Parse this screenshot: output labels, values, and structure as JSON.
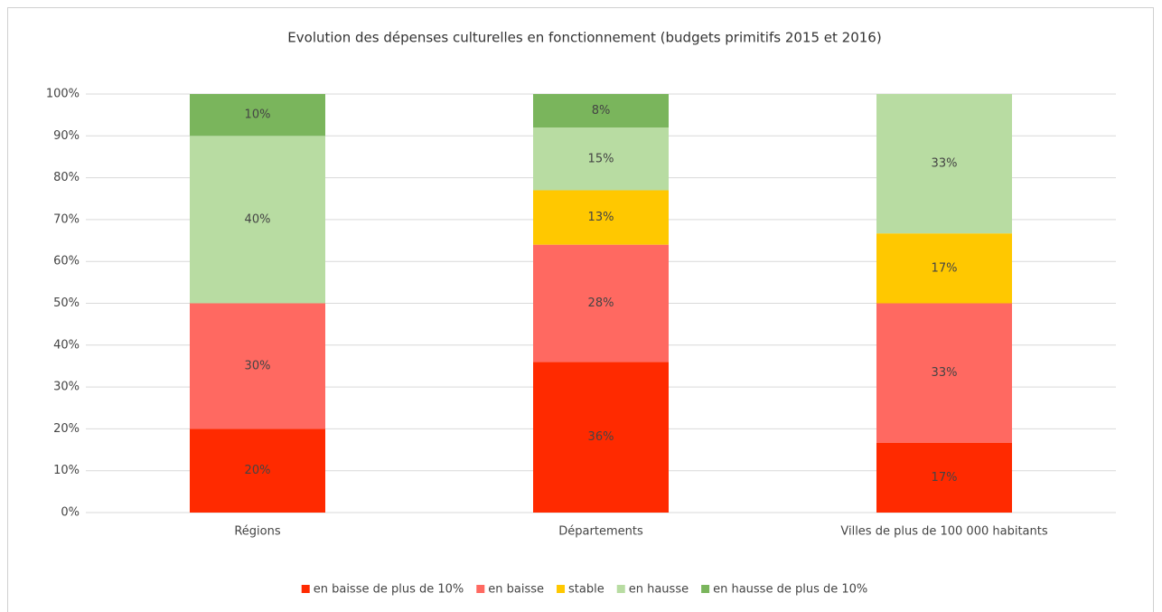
{
  "chart_data": {
    "type": "stacked_bar",
    "title": "Evolution des dépenses culturelles en fonctionnement (budgets primitifs 2015 et 2016)",
    "categories": [
      "Régions",
      "Départements",
      "Villes de plus de 100 000 habitants"
    ],
    "series": [
      {
        "name": "en baisse de plus de 10%",
        "color": "#ff2a00",
        "values": [
          20,
          36,
          16.7
        ],
        "value_labels": [
          "20%",
          "36%",
          "17%"
        ]
      },
      {
        "name": "en baisse",
        "color": "#ff6961",
        "values": [
          30,
          28,
          33.3
        ],
        "value_labels": [
          "30%",
          "28%",
          "33%"
        ]
      },
      {
        "name": "stable",
        "color": "#ffc800",
        "values": [
          0,
          13,
          16.7
        ],
        "value_labels": [
          null,
          "13%",
          "17%"
        ]
      },
      {
        "name": "en hausse",
        "color": "#b8dca2",
        "values": [
          40,
          15,
          33.3
        ],
        "value_labels": [
          "40%",
          "15%",
          "33%"
        ]
      },
      {
        "name": "en hausse de plus de 10%",
        "color": "#7ab55c",
        "values": [
          10,
          8,
          0
        ],
        "value_labels": [
          "10%",
          "8%",
          null
        ]
      }
    ],
    "ylim": [
      0,
      100
    ],
    "yticks": [
      {
        "value": 0,
        "label": "0%"
      },
      {
        "value": 10,
        "label": "10%"
      },
      {
        "value": 20,
        "label": "20%"
      },
      {
        "value": 30,
        "label": "30%"
      },
      {
        "value": 40,
        "label": "40%"
      },
      {
        "value": 50,
        "label": "50%"
      },
      {
        "value": 60,
        "label": "60%"
      },
      {
        "value": 70,
        "label": "70%"
      },
      {
        "value": 80,
        "label": "80%"
      },
      {
        "value": 90,
        "label": "90%"
      },
      {
        "value": 100,
        "label": "100%"
      }
    ],
    "grid": true,
    "legend": "bottom"
  }
}
